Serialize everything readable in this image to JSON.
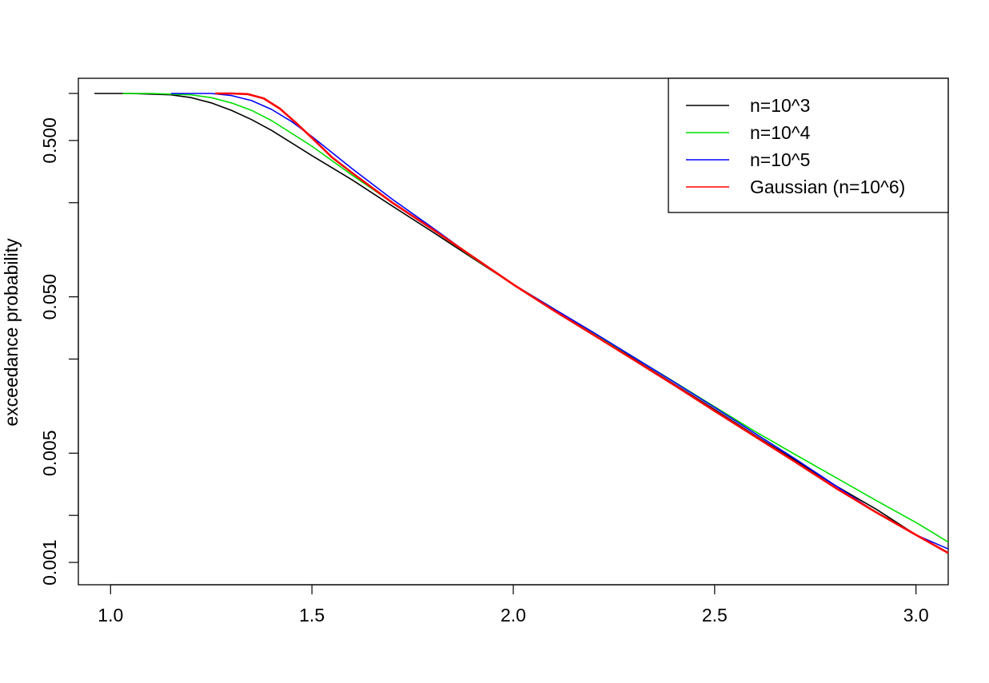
{
  "chart_data": {
    "type": "line",
    "title": "",
    "xlabel": "",
    "ylabel": "exceedance probability",
    "xlim": [
      0.92,
      3.08
    ],
    "ylim": [
      0.00072,
      1.25
    ],
    "y_scale": "log",
    "grid": false,
    "legend_position": "top-right",
    "x_ticks": [
      {
        "value": 1.0,
        "label": "1.0"
      },
      {
        "value": 1.5,
        "label": "1.5"
      },
      {
        "value": 2.0,
        "label": "2.0"
      },
      {
        "value": 2.5,
        "label": "2.5"
      },
      {
        "value": 3.0,
        "label": "3.0"
      }
    ],
    "y_ticks": [
      {
        "value": 0.001,
        "label": "0.001"
      },
      {
        "value": 0.002,
        "label": ""
      },
      {
        "value": 0.005,
        "label": "0.005"
      },
      {
        "value": 0.02,
        "label": ""
      },
      {
        "value": 0.05,
        "label": "0.050"
      },
      {
        "value": 0.2,
        "label": ""
      },
      {
        "value": 0.5,
        "label": "0.500"
      },
      {
        "value": 1.0,
        "label": ""
      }
    ],
    "series": [
      {
        "name": "n=10^3",
        "color": "#000000",
        "width": 1.6,
        "x": [
          0.96,
          1.05,
          1.15,
          1.2,
          1.25,
          1.3,
          1.35,
          1.4,
          1.5,
          1.6,
          1.7,
          1.8,
          1.9,
          2.0,
          2.1,
          2.2,
          2.3,
          2.4,
          2.5,
          2.6,
          2.7,
          2.8,
          2.9,
          3.0,
          3.08
        ],
        "y": [
          1.0,
          1.0,
          0.98,
          0.94,
          0.87,
          0.78,
          0.68,
          0.58,
          0.4,
          0.28,
          0.19,
          0.13,
          0.088,
          0.06,
          0.042,
          0.029,
          0.02,
          0.0138,
          0.0095,
          0.0065,
          0.0045,
          0.0031,
          0.0022,
          0.0015,
          0.00115
        ]
      },
      {
        "name": "n=10^4",
        "color": "#00e000",
        "width": 1.6,
        "x": [
          1.03,
          1.1,
          1.2,
          1.25,
          1.3,
          1.35,
          1.4,
          1.5,
          1.6,
          1.7,
          1.8,
          1.9,
          2.0,
          2.1,
          2.2,
          2.3,
          2.4,
          2.5,
          2.6,
          2.7,
          2.8,
          2.9,
          3.0,
          3.08
        ],
        "y": [
          1.0,
          1.0,
          0.98,
          0.94,
          0.87,
          0.78,
          0.67,
          0.46,
          0.3,
          0.2,
          0.135,
          0.089,
          0.06,
          0.042,
          0.029,
          0.0205,
          0.0143,
          0.0099,
          0.0069,
          0.0049,
          0.0035,
          0.0025,
          0.0018,
          0.00135
        ]
      },
      {
        "name": "n=10^5",
        "color": "#0000ff",
        "width": 1.6,
        "x": [
          1.15,
          1.25,
          1.3,
          1.35,
          1.4,
          1.45,
          1.5,
          1.6,
          1.7,
          1.8,
          1.9,
          2.0,
          2.1,
          2.2,
          2.3,
          2.4,
          2.5,
          2.6,
          2.7,
          2.8,
          2.9,
          3.0,
          3.08
        ],
        "y": [
          1.0,
          1.0,
          0.97,
          0.9,
          0.79,
          0.66,
          0.53,
          0.33,
          0.21,
          0.138,
          0.09,
          0.06,
          0.042,
          0.0295,
          0.0205,
          0.0142,
          0.0098,
          0.0067,
          0.0046,
          0.0031,
          0.0021,
          0.0015,
          0.00122
        ]
      },
      {
        "name": "Gaussian (n=10^6)",
        "color": "#ff0000",
        "width": 2.6,
        "x": [
          1.26,
          1.3,
          1.34,
          1.38,
          1.42,
          1.46,
          1.5,
          1.55,
          1.6,
          1.7,
          1.8,
          1.9,
          2.0,
          2.1,
          2.2,
          2.3,
          2.4,
          2.5,
          2.6,
          2.7,
          2.8,
          2.9,
          3.0,
          3.08
        ],
        "y": [
          1.0,
          1.0,
          0.99,
          0.93,
          0.8,
          0.65,
          0.52,
          0.39,
          0.31,
          0.2,
          0.135,
          0.09,
          0.06,
          0.041,
          0.0285,
          0.0197,
          0.0136,
          0.0093,
          0.0064,
          0.0044,
          0.003,
          0.0021,
          0.0015,
          0.00115
        ]
      }
    ]
  }
}
